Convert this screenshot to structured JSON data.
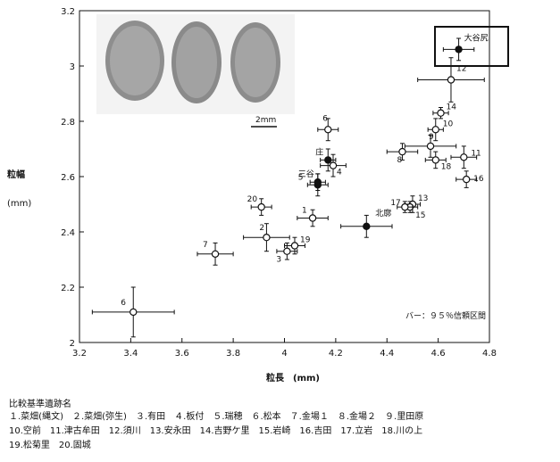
{
  "chart_data": {
    "type": "scatter",
    "ylabel": "粒幅",
    "ylabel_unit": "(mm)",
    "xlabel": "粒長　(mm)",
    "xlim": [
      3.2,
      4.8
    ],
    "ylim": [
      2.0,
      3.2
    ],
    "x_ticks": [
      "3.2",
      "3.4",
      "3.6",
      "3.8",
      "4",
      "4.2",
      "4.4",
      "4.6",
      "4.8"
    ],
    "y_ticks": [
      "3.2",
      "3",
      "2.8",
      "2.6",
      "2.4",
      "2.2",
      "2"
    ],
    "grid": false,
    "scale_label": "2mm",
    "bar_note": "バー：９５％信頼区間",
    "points": [
      {
        "label": "1",
        "x": 4.11,
        "y": 2.45,
        "xerr": 0.06,
        "yerr": 0.03,
        "filled": false
      },
      {
        "label": "2",
        "x": 3.93,
        "y": 2.38,
        "xerr": 0.09,
        "yerr": 0.05,
        "filled": false
      },
      {
        "label": "3",
        "x": 4.01,
        "y": 2.33,
        "xerr": 0.04,
        "yerr": 0.03,
        "filled": false
      },
      {
        "label": "4",
        "x": 4.19,
        "y": 2.64,
        "xerr": 0.05,
        "yerr": 0.04,
        "filled": false
      },
      {
        "label": "5",
        "x": 4.13,
        "y": 2.57,
        "xerr": 0.04,
        "yerr": 0.04,
        "filled": true
      },
      {
        "label": "6",
        "x": 4.17,
        "y": 2.77,
        "xerr": 0.04,
        "yerr": 0.04,
        "filled": false
      },
      {
        "label": "6",
        "x": 3.41,
        "y": 2.11,
        "xerr": 0.16,
        "yerr": 0.09,
        "filled": false
      },
      {
        "label": "7",
        "x": 3.73,
        "y": 2.32,
        "xerr": 0.07,
        "yerr": 0.04,
        "filled": false
      },
      {
        "label": "8",
        "x": 4.46,
        "y": 2.69,
        "xerr": 0.06,
        "yerr": 0.03,
        "filled": false
      },
      {
        "label": "9",
        "x": 4.57,
        "y": 2.71,
        "xerr": 0.1,
        "yerr": 0.04,
        "filled": false
      },
      {
        "label": "10",
        "x": 4.59,
        "y": 2.77,
        "xerr": 0.03,
        "yerr": 0.04,
        "filled": false
      },
      {
        "label": "11",
        "x": 4.7,
        "y": 2.67,
        "xerr": 0.05,
        "yerr": 0.04,
        "filled": false
      },
      {
        "label": "12",
        "x": 4.65,
        "y": 2.95,
        "xerr": 0.13,
        "yerr": 0.08,
        "filled": false
      },
      {
        "label": "13",
        "x": 4.5,
        "y": 2.5,
        "xerr": 0.03,
        "yerr": 0.03,
        "filled": false
      },
      {
        "label": "14",
        "x": 4.61,
        "y": 2.83,
        "xerr": 0.03,
        "yerr": 0.02,
        "filled": false
      },
      {
        "label": "15",
        "x": 4.49,
        "y": 2.49,
        "xerr": 0.03,
        "yerr": 0.02,
        "filled": false
      },
      {
        "label": "16",
        "x": 4.71,
        "y": 2.59,
        "xerr": 0.04,
        "yerr": 0.03,
        "filled": false
      },
      {
        "label": "17",
        "x": 4.47,
        "y": 2.49,
        "xerr": 0.03,
        "yerr": 0.02,
        "filled": false
      },
      {
        "label": "18",
        "x": 4.59,
        "y": 2.66,
        "xerr": 0.04,
        "yerr": 0.03,
        "filled": false
      },
      {
        "label": "19",
        "x": 4.04,
        "y": 2.35,
        "xerr": 0.04,
        "yerr": 0.03,
        "filled": false
      },
      {
        "label": "20",
        "x": 3.91,
        "y": 2.49,
        "xerr": 0.04,
        "yerr": 0.03,
        "filled": false
      },
      {
        "label": "庄",
        "x": 4.17,
        "y": 2.66,
        "xerr": 0.03,
        "yerr": 0.04,
        "filled": true
      },
      {
        "label": "三谷",
        "x": 4.13,
        "y": 2.58,
        "xerr": 0.03,
        "yerr": 0.03,
        "filled": true
      },
      {
        "label": "北廓",
        "x": 4.32,
        "y": 2.42,
        "xerr": 0.1,
        "yerr": 0.04,
        "filled": true
      },
      {
        "label": "大谷尻",
        "x": 4.68,
        "y": 3.06,
        "xerr": 0.06,
        "yerr": 0.04,
        "filled": true
      }
    ],
    "highlight_box_label": "大谷尻"
  },
  "caption": {
    "title": "比較基準遺跡名",
    "lines": [
      "１.菜畑(縄文)　２.菜畑(弥生)　３.有田　４.板付　５.瑞穂　６.松本　７.金場１　８.金場２　９.里田原",
      "10.空前　11.津古牟田　12.須川　13.安永田　14.吉野ケ里　15.岩崎　16.吉田　17.立岩　18.川の上",
      "19.松菊里　20.固城"
    ]
  }
}
